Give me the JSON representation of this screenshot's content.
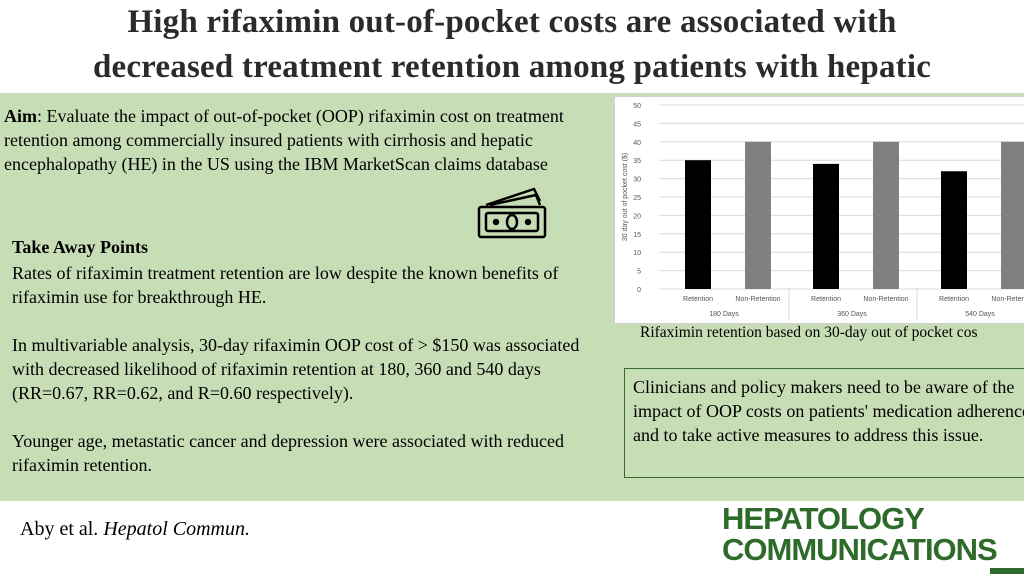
{
  "title": {
    "line1": "High rifaximin out-of-pocket costs are associated with",
    "line2": "decreased treatment retention among patients with hepatic"
  },
  "aim": {
    "label": "Aim",
    "text": ": Evaluate the impact of out-of-pocket (OOP) rifaximin cost on treatment retention among commercially insured patients with cirrhosis and hepatic encephalopathy (HE) in the US using the IBM MarketScan claims database"
  },
  "icons": {
    "money": "money-bills-icon"
  },
  "takeaway": {
    "heading": "Take Away Points",
    "p1": "Rates of rifaximin treatment retention are low despite the known benefits of rifaximin use for breakthrough HE.",
    "p2": "In multivariable analysis, 30-day rifaximin OOP cost of > $150 was associated with decreased likelihood of rifaximin retention at 180, 360 and 540 days (RR=0.67, RR=0.62, and R=0.60 respectively).",
    "p3": "Younger age, metastatic cancer and depression were associated with reduced rifaximin retention."
  },
  "caption": "Rifaximin retention based on 30-day out of pocket cos",
  "clinicians": "Clinicians and policy makers need to be aware of the impact of OOP costs on patients' medication adherence and to take active measures to address this issue.",
  "citation": {
    "authors": "Aby et al. ",
    "journal": "Hepatol Commun."
  },
  "logo": {
    "line1": "HEPATOLOGY",
    "line2": "COMMUNICATIONS"
  },
  "colors": {
    "panel": "#c7ddb5",
    "retention": "#000000",
    "non_retention": "#808080",
    "logo": "#2e6b2a"
  },
  "chart_data": {
    "type": "bar",
    "ylabel": "30 day out of pocket cost ($)",
    "ylim": [
      0,
      50
    ],
    "yticks": [
      0,
      5,
      10,
      15,
      20,
      25,
      30,
      35,
      40,
      45,
      50
    ],
    "groups": [
      "180 Days",
      "360 Days",
      "540 Days"
    ],
    "categories": [
      "Retention",
      "Non-Retention"
    ],
    "values": [
      [
        35,
        40
      ],
      [
        34,
        40
      ],
      [
        32,
        40
      ]
    ],
    "grid": true
  }
}
